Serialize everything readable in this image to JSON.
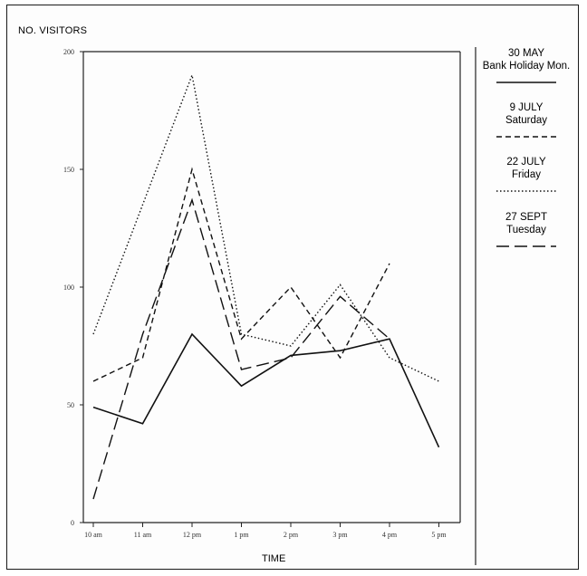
{
  "chart_data": {
    "type": "line",
    "ylabel": "NO. VISITORS",
    "xlabel": "TIME",
    "categories": [
      "10 am",
      "11 am",
      "12 pm",
      "1 pm",
      "2 pm",
      "3 pm",
      "4 pm",
      "5 pm"
    ],
    "yticks": [
      0,
      50,
      100,
      150,
      200
    ],
    "ylim": [
      0,
      200
    ],
    "grid": false,
    "legend_position": "right",
    "series": [
      {
        "date": "30 MAY",
        "day": "Bank Holiday Mon.",
        "style": "solid",
        "x": [
          "10 am",
          "11 am",
          "12 pm",
          "1 pm",
          "2 pm",
          "3 pm",
          "4 pm",
          "5 pm"
        ],
        "values": [
          49,
          42,
          80,
          58,
          71,
          73,
          78,
          32
        ]
      },
      {
        "date": "9 JULY",
        "day": "Saturday",
        "style": "short-dash",
        "x": [
          "10 am",
          "11 am",
          "12 pm",
          "1 pm",
          "2 pm",
          "3 pm",
          "4 pm"
        ],
        "values": [
          60,
          70,
          150,
          78,
          100,
          70,
          110
        ]
      },
      {
        "date": "22 JULY",
        "day": "Friday",
        "style": "dotted",
        "x": [
          "10 am",
          "11 am",
          "12 pm",
          "1 pm",
          "2 pm",
          "3 pm",
          "4 pm",
          "5 pm"
        ],
        "values": [
          80,
          135,
          190,
          80,
          75,
          101,
          70,
          60
        ]
      },
      {
        "date": "27 SEPT",
        "day": "Tuesday",
        "style": "long-dash",
        "x": [
          "10 am",
          "11 am",
          "12 pm",
          "1 pm",
          "2 pm",
          "3 pm",
          "4 pm"
        ],
        "values": [
          10,
          80,
          137,
          65,
          70,
          96,
          78
        ]
      }
    ]
  }
}
